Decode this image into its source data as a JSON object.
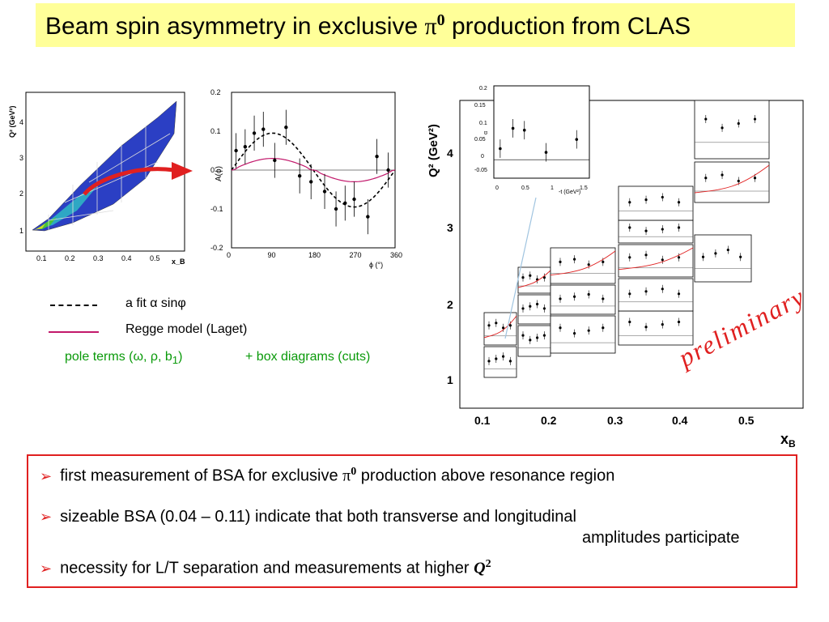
{
  "title": {
    "prefix": "Beam spin asymmetry in exclusive ",
    "symbol": "π",
    "sup": "0",
    "suffix": " production from CLAS"
  },
  "kinematics_plot": {
    "ylabel": "Q² (GeV²)",
    "xlabel": "x_B",
    "x_ticks": [
      "0.1",
      "0.2",
      "0.3",
      "0.4",
      "0.5"
    ],
    "y_ticks": [
      "1",
      "2",
      "3",
      "4"
    ]
  },
  "asym_plot": {
    "ylabel": "A(ϕ)",
    "xlabel": "ϕ (°)",
    "x_ticks": [
      "0",
      "90",
      "180",
      "270",
      "360"
    ],
    "y_ticks": [
      "-0.2",
      "-0.1",
      "0",
      "0.1",
      "0.2"
    ]
  },
  "legend": {
    "fit_label": "a fit  α sinφ",
    "regge_label": "Regge model (Laget)",
    "pole_label": "pole terms (ω, ρ, b",
    "pole_sub": "1",
    "pole_close": ")",
    "box_label": "+ box diagrams (cuts)"
  },
  "right_plot": {
    "ylabel": "Q² (GeV²)",
    "xlabel": "x",
    "xlabel_sub": "B",
    "x_ticks": [
      "0.1",
      "0.2",
      "0.3",
      "0.4",
      "0.5"
    ],
    "y_ticks": [
      "1",
      "2",
      "3",
      "4"
    ],
    "inset": {
      "ylabel": "α",
      "xlabel": "-t (GeV²)",
      "x_ticks": [
        "0",
        "0.5",
        "1",
        "1.5"
      ],
      "y_ticks": [
        "-0.05",
        "0",
        "0.05",
        "0.1",
        "0.15",
        "0.2"
      ]
    },
    "stamp": "preliminary"
  },
  "chart_data": [
    {
      "type": "scatter",
      "title": "",
      "xlabel": "ϕ (°)",
      "ylabel": "A(ϕ)",
      "xlim": [
        0,
        360
      ],
      "ylim": [
        -0.2,
        0.2
      ],
      "series": [
        {
          "x": [
            10,
            30,
            50,
            70,
            95,
            120,
            150,
            175,
            205,
            230,
            250,
            270,
            300,
            320,
            345
          ],
          "y": [
            0.05,
            0.06,
            0.095,
            0.105,
            0.025,
            0.11,
            -0.015,
            -0.03,
            -0.055,
            -0.1,
            -0.085,
            -0.075,
            -0.12,
            0.035,
            0.0
          ]
        }
      ]
    },
    {
      "type": "scatter",
      "title": "",
      "xlabel": "-t (GeV²)",
      "ylabel": "α",
      "xlim": [
        0,
        1.5
      ],
      "ylim": [
        -0.05,
        0.2
      ],
      "series": [
        {
          "x": [
            0.1,
            0.3,
            0.48,
            0.82,
            1.3
          ],
          "y": [
            0.03,
            0.085,
            0.08,
            0.02,
            0.055
          ]
        }
      ]
    }
  ],
  "bullets": [
    {
      "text": "first measurement of BSA for exclusive ",
      "sym": "π",
      "sup": "0",
      "tail": " production above resonance region"
    },
    {
      "text": "sizeable BSA (0.04 – 0.11) indicate that both transverse and longitudinal",
      "line2": "amplitudes participate"
    },
    {
      "text": "necessity for L/T separation and measurements at higher ",
      "sym": "Q",
      "sup": "2"
    }
  ],
  "colors": {
    "title_bg": "#ffff99",
    "accent_red": "#e02020",
    "green": "#0a9a0a",
    "regge": "#c2186b"
  }
}
